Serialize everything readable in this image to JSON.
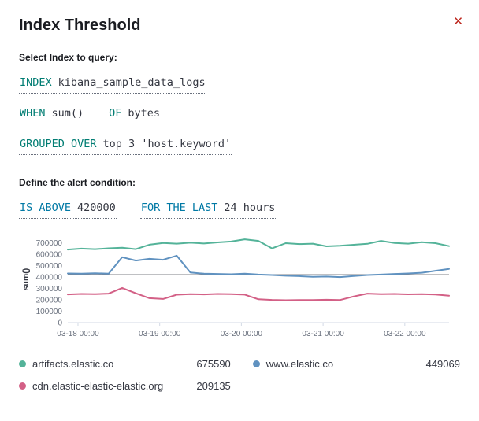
{
  "header": {
    "title": "Index Threshold",
    "close_glyph": "✕"
  },
  "sections": {
    "select_index_label": "Select Index to query:",
    "condition_label": "Define the alert condition:"
  },
  "expressions": {
    "index": {
      "keyword": "INDEX",
      "value": "kibana_sample_data_logs"
    },
    "when": {
      "keyword": "WHEN",
      "value": "sum()"
    },
    "of": {
      "keyword": "OF",
      "value": "bytes"
    },
    "grouped": {
      "keyword": "GROUPED OVER",
      "value": "top 3 'host.keyword'"
    },
    "threshold": {
      "keyword": "IS ABOVE",
      "value": "420000"
    },
    "window": {
      "keyword": "FOR THE LAST",
      "value": "24 hours"
    }
  },
  "colors": {
    "keyword_teal": "#017D73",
    "keyword_blue": "#0079A5",
    "close": "#BD271E",
    "threshold_line": "#54565F",
    "axis": "#D3DAE6",
    "tick_text": "#69707D"
  },
  "chart_data": {
    "type": "line",
    "title": "",
    "xlabel": "",
    "ylabel": "sum()",
    "ylim": [
      0,
      760000
    ],
    "y_ticks": [
      0,
      100000,
      200000,
      300000,
      400000,
      500000,
      600000,
      700000
    ],
    "x_range": [
      0,
      112
    ],
    "x_ticks": [
      {
        "h": 3,
        "label": "03-18 00:00"
      },
      {
        "h": 27,
        "label": "03-19 00:00"
      },
      {
        "h": 51,
        "label": "03-20 00:00"
      },
      {
        "h": 75,
        "label": "03-21 00:00"
      },
      {
        "h": 99,
        "label": "03-22 00:00"
      }
    ],
    "threshold": 420000,
    "grid": false,
    "legend_position": "bottom",
    "series": [
      {
        "name": "artifacts.elastic.co",
        "color": "#54B399",
        "current": "675590",
        "values": [
          642000,
          650000,
          645000,
          653000,
          658000,
          645000,
          685000,
          700000,
          694000,
          702000,
          695000,
          705000,
          712000,
          732000,
          718000,
          652000,
          698000,
          690000,
          694000,
          670000,
          676000,
          684000,
          692000,
          718000,
          700000,
          694000,
          706000,
          698000,
          672000
        ]
      },
      {
        "name": "www.elastic.co",
        "color": "#6092C0",
        "current": "449069",
        "values": [
          432000,
          430000,
          434000,
          430000,
          575000,
          545000,
          560000,
          552000,
          588000,
          440000,
          430000,
          428000,
          425000,
          430000,
          422000,
          418000,
          412000,
          408000,
          402000,
          405000,
          400000,
          410000,
          418000,
          422000,
          428000,
          432000,
          438000,
          455000,
          472000
        ]
      },
      {
        "name": "cdn.elastic-elastic-elastic.org",
        "color": "#D36086",
        "current": "209135",
        "values": [
          248000,
          252000,
          250000,
          255000,
          305000,
          258000,
          215000,
          208000,
          245000,
          250000,
          248000,
          252000,
          250000,
          246000,
          205000,
          200000,
          197000,
          199000,
          198000,
          201000,
          199000,
          230000,
          255000,
          250000,
          252000,
          249000,
          251000,
          247000,
          236000
        ]
      }
    ]
  }
}
